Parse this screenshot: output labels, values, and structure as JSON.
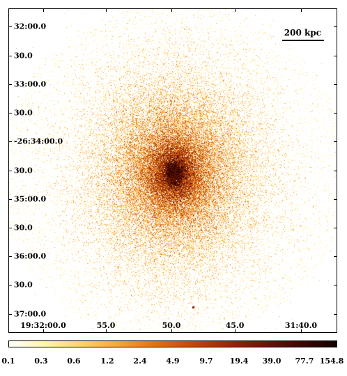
{
  "image": {
    "scale_bar_label": "200 kpc",
    "dec_labels": [
      "32:00.0",
      "30.0",
      "33:00.0",
      "30.0",
      "-26:34:00.0",
      "30.0",
      "35:00.0",
      "30.0",
      "36:00.0",
      "30.0",
      "37:00.0"
    ],
    "ra_labels": [
      "19:32:00.0",
      "55.0",
      "50.0",
      "45.0",
      "31:40.0"
    ],
    "colorbar_labels": [
      "0.1",
      "0.3",
      "0.6",
      "1.2",
      "2.4",
      "4.9",
      "9.7",
      "19.4",
      "39.0",
      "77.7",
      "154.8"
    ],
    "colormap": [
      "#ffffff",
      "#fff5a8",
      "#ffd26a",
      "#f7a43a",
      "#e07214",
      "#c44a0a",
      "#9a2a05",
      "#6e1304",
      "#3e0603",
      "#120101"
    ]
  }
}
